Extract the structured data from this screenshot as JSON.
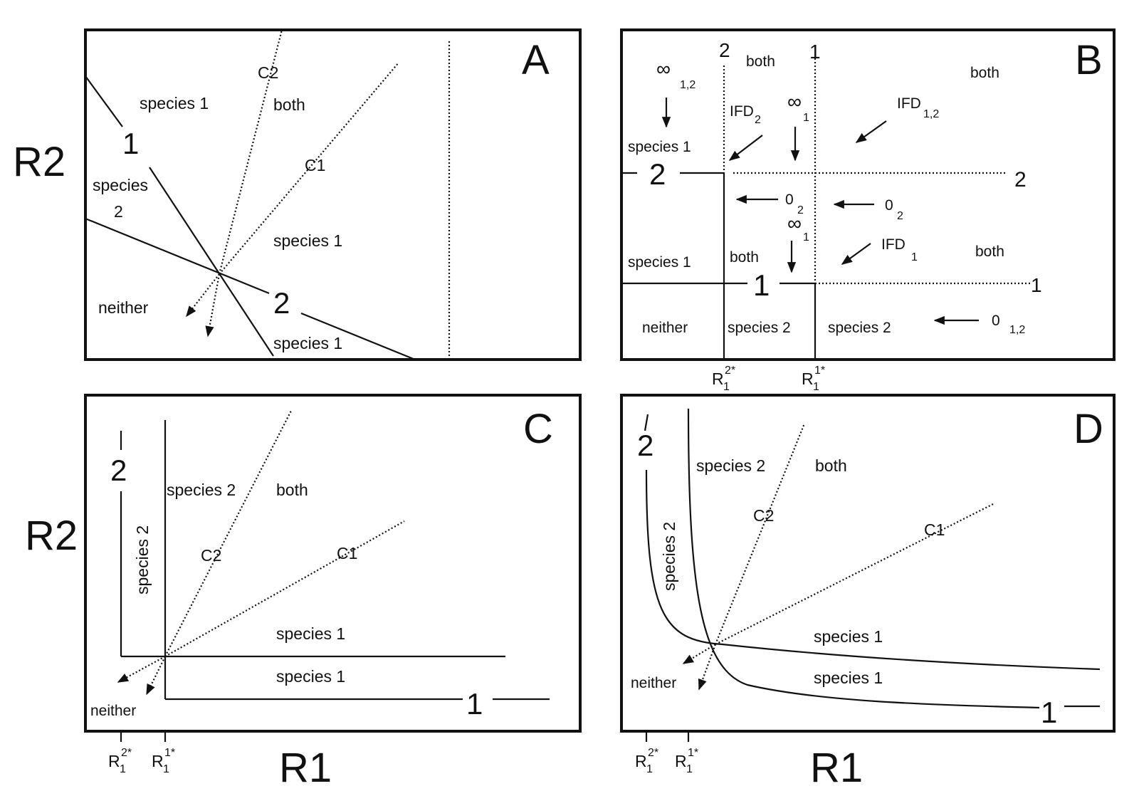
{
  "axes": {
    "y": "R2",
    "x": "R1"
  },
  "ticks": {
    "r2": "R",
    "r2_sub": "1",
    "r2_sup": "2*",
    "r1": "R",
    "r1_sub": "1",
    "r1_sup": "1*"
  },
  "panels": {
    "A": {
      "letter": "A",
      "labels": {
        "species1_top": "species 1",
        "c2": "C2",
        "both": "both",
        "one": "1",
        "c1": "C1",
        "species_word": "species",
        "species_num": "2",
        "species1_mid": "species 1",
        "neither": "neither",
        "two": "2",
        "species1_bottom": "species 1"
      }
    },
    "B": {
      "letter": "B",
      "labels": {
        "top2": "2",
        "both_top": "both",
        "top1": "1",
        "both_right": "both",
        "inf": "∞",
        "inf_sub12": "1,2",
        "ifd": "IFD",
        "ifd_sub2": "2",
        "inf_sub1": "1",
        "ifd_sub12": "1,2",
        "species1_upper": "species 1",
        "left2": "2",
        "right2": "2",
        "zero": "0",
        "zero_sub2": "2",
        "inf_sub1b": "1",
        "ifd_sub1": "1",
        "species1_lower": "species 1",
        "both_mid": "both",
        "both_right_mid": "both",
        "one_mid": "1",
        "right1": "1",
        "neither": "neither",
        "species2_a": "species 2",
        "species2_b": "species 2",
        "zero_sub12": "1,2"
      }
    },
    "C": {
      "letter": "C",
      "labels": {
        "two": "2",
        "species2_top": "species 2",
        "both": "both",
        "species2_vert": "species 2",
        "c2": "C2",
        "c1": "C1",
        "species1_upper": "species 1",
        "species1_lower": "species 1",
        "neither": "neither",
        "one": "1"
      }
    },
    "D": {
      "letter": "D",
      "labels": {
        "two": "2",
        "species2_top": "species 2",
        "both": "both",
        "c2": "C2",
        "c1": "C1",
        "species2_vert": "species 2",
        "species1_upper": "species 1",
        "neither": "neither",
        "species1_lower": "species 1",
        "one": "1"
      }
    }
  }
}
